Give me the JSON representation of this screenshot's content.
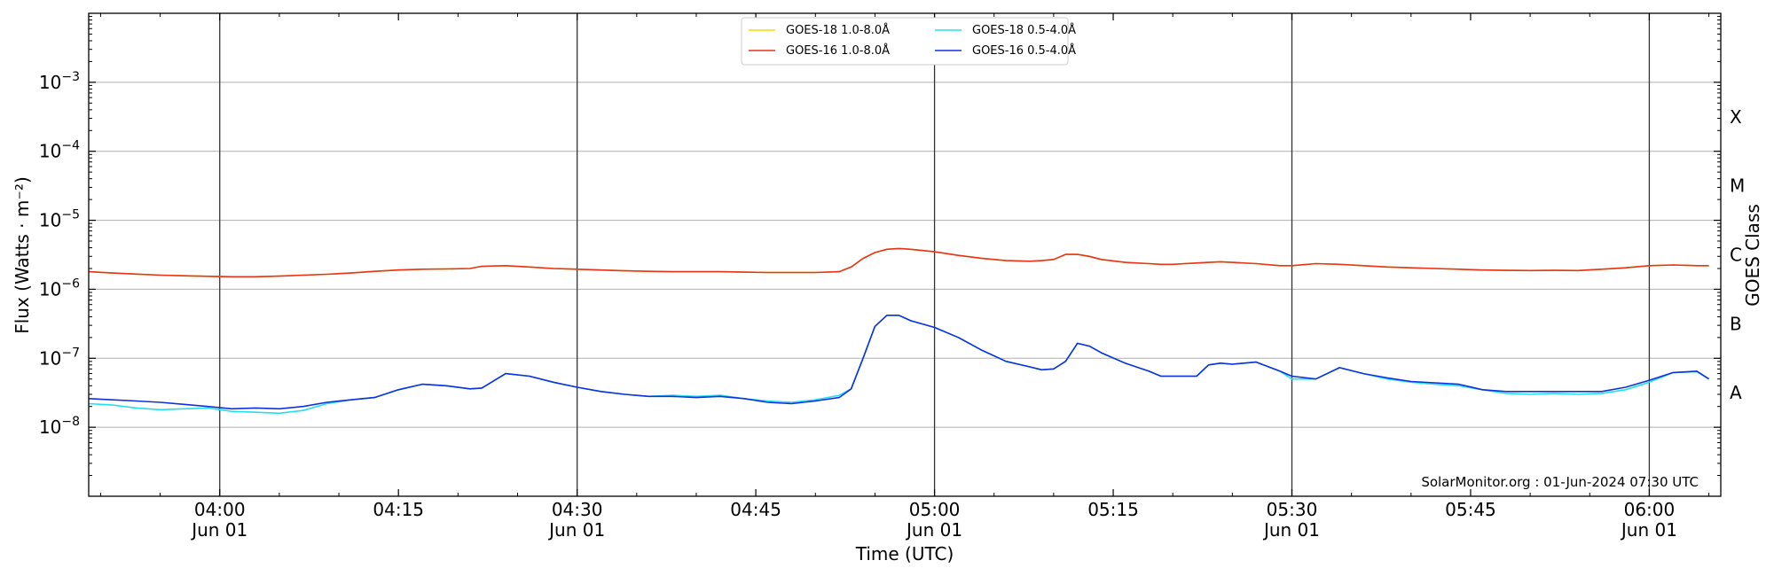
{
  "chart_data": {
    "type": "line",
    "title": "",
    "xlabel": "Time (UTC)",
    "ylabel": "Flux (Watts · m⁻²)",
    "y2label": "GOES Class",
    "yscale": "log",
    "ylim": [
      1e-09,
      0.01
    ],
    "xlim": [
      "03:49",
      "06:06"
    ],
    "grid": "horizontal",
    "legend_position": "top-center",
    "annotation": "SolarMonitor.org : 01-Jun-2024 07:30 UTC",
    "x_ticks": [
      {
        "time": "04:00",
        "date": "Jun 01"
      },
      {
        "time": "04:15",
        "date": ""
      },
      {
        "time": "04:30",
        "date": "Jun 01"
      },
      {
        "time": "04:45",
        "date": ""
      },
      {
        "time": "05:00",
        "date": "Jun 01"
      },
      {
        "time": "05:15",
        "date": ""
      },
      {
        "time": "05:30",
        "date": "Jun 01"
      },
      {
        "time": "05:45",
        "date": ""
      },
      {
        "time": "06:00",
        "date": "Jun 01"
      }
    ],
    "vlines": [
      "04:00",
      "04:30",
      "05:00",
      "05:30",
      "06:00"
    ],
    "y_ticks": [
      {
        "value": 1e-08,
        "base": "10",
        "exp": "−8"
      },
      {
        "value": 1e-07,
        "base": "10",
        "exp": "−7"
      },
      {
        "value": 1e-06,
        "base": "10",
        "exp": "−6"
      },
      {
        "value": 1e-05,
        "base": "10",
        "exp": "−5"
      },
      {
        "value": 0.0001,
        "base": "10",
        "exp": "−4"
      },
      {
        "value": 0.001,
        "base": "10",
        "exp": "−3"
      }
    ],
    "goes_classes": [
      {
        "label": "A",
        "value": 3.16e-08
      },
      {
        "label": "B",
        "value": 3.16e-07
      },
      {
        "label": "C",
        "value": 3.16e-06
      },
      {
        "label": "M",
        "value": 3.16e-05
      },
      {
        "label": "X",
        "value": 0.000316
      }
    ],
    "x": [
      "03:49",
      "03:51",
      "03:53",
      "03:55",
      "03:57",
      "03:59",
      "04:01",
      "04:03",
      "04:05",
      "04:07",
      "04:09",
      "04:11",
      "04:13",
      "04:15",
      "04:17",
      "04:19",
      "04:21",
      "04:22",
      "04:24",
      "04:26",
      "04:28",
      "04:30",
      "04:32",
      "04:34",
      "04:36",
      "04:38",
      "04:40",
      "04:42",
      "04:44",
      "04:46",
      "04:48",
      "04:50",
      "04:52",
      "04:53",
      "04:54",
      "04:55",
      "04:56",
      "04:57",
      "04:58",
      "05:00",
      "05:02",
      "05:04",
      "05:06",
      "05:08",
      "05:09",
      "05:10",
      "05:11",
      "05:12",
      "05:13",
      "05:14",
      "05:16",
      "05:18",
      "05:19",
      "05:20",
      "05:21",
      "05:22",
      "05:23",
      "05:24",
      "05:25",
      "05:27",
      "05:29",
      "05:30",
      "05:32",
      "05:34",
      "05:36",
      "05:38",
      "05:40",
      "05:42",
      "05:44",
      "05:46",
      "05:48",
      "05:50",
      "05:52",
      "05:54",
      "05:56",
      "05:58",
      "06:00",
      "06:02",
      "06:04",
      "06:05"
    ],
    "series": [
      {
        "name": "GOES-18 1.0-8.0Å",
        "color": "#ffd700",
        "values": [
          1.8e-06,
          1.72e-06,
          1.66e-06,
          1.6e-06,
          1.57e-06,
          1.54e-06,
          1.52e-06,
          1.52e-06,
          1.55e-06,
          1.6e-06,
          1.65e-06,
          1.72e-06,
          1.82e-06,
          1.9e-06,
          1.95e-06,
          1.97e-06,
          2e-06,
          2.15e-06,
          2.2e-06,
          2.1e-06,
          2e-06,
          1.95e-06,
          1.9e-06,
          1.85e-06,
          1.82e-06,
          1.8e-06,
          1.8e-06,
          1.8e-06,
          1.77e-06,
          1.75e-06,
          1.75e-06,
          1.75e-06,
          1.8e-06,
          2.1e-06,
          2.8e-06,
          3.4e-06,
          3.8e-06,
          3.9e-06,
          3.8e-06,
          3.5e-06,
          3.1e-06,
          2.8e-06,
          2.6e-06,
          2.55e-06,
          2.6e-06,
          2.7e-06,
          3.2e-06,
          3.2e-06,
          3e-06,
          2.7e-06,
          2.45e-06,
          2.35e-06,
          2.3e-06,
          2.3e-06,
          2.35e-06,
          2.4e-06,
          2.45e-06,
          2.5e-06,
          2.45e-06,
          2.35e-06,
          2.2e-06,
          2.2e-06,
          2.35e-06,
          2.3e-06,
          2.2e-06,
          2.1e-06,
          2.05e-06,
          2e-06,
          1.95e-06,
          1.9e-06,
          1.88e-06,
          1.87e-06,
          1.88e-06,
          1.87e-06,
          1.95e-06,
          2.05e-06,
          2.2e-06,
          2.25e-06,
          2.2e-06,
          2.2e-06
        ]
      },
      {
        "name": "GOES-16 1.0-8.0Å",
        "color": "#e8341c",
        "values": [
          1.8e-06,
          1.72e-06,
          1.66e-06,
          1.6e-06,
          1.57e-06,
          1.54e-06,
          1.52e-06,
          1.52e-06,
          1.55e-06,
          1.6e-06,
          1.65e-06,
          1.72e-06,
          1.82e-06,
          1.9e-06,
          1.95e-06,
          1.97e-06,
          2e-06,
          2.15e-06,
          2.2e-06,
          2.1e-06,
          2e-06,
          1.95e-06,
          1.9e-06,
          1.85e-06,
          1.82e-06,
          1.8e-06,
          1.8e-06,
          1.8e-06,
          1.77e-06,
          1.75e-06,
          1.75e-06,
          1.75e-06,
          1.8e-06,
          2.1e-06,
          2.8e-06,
          3.4e-06,
          3.8e-06,
          3.9e-06,
          3.8e-06,
          3.5e-06,
          3.1e-06,
          2.8e-06,
          2.6e-06,
          2.55e-06,
          2.6e-06,
          2.7e-06,
          3.2e-06,
          3.2e-06,
          3e-06,
          2.7e-06,
          2.45e-06,
          2.35e-06,
          2.3e-06,
          2.3e-06,
          2.35e-06,
          2.4e-06,
          2.45e-06,
          2.5e-06,
          2.45e-06,
          2.35e-06,
          2.2e-06,
          2.2e-06,
          2.35e-06,
          2.3e-06,
          2.2e-06,
          2.1e-06,
          2.05e-06,
          2e-06,
          1.95e-06,
          1.9e-06,
          1.88e-06,
          1.87e-06,
          1.88e-06,
          1.87e-06,
          1.95e-06,
          2.05e-06,
          2.2e-06,
          2.25e-06,
          2.2e-06,
          2.2e-06
        ]
      },
      {
        "name": "GOES-18 0.5-4.0Å",
        "color": "#22e0f0",
        "values": [
          2.2e-08,
          2.1e-08,
          1.9e-08,
          1.8e-08,
          1.85e-08,
          1.9e-08,
          1.7e-08,
          1.65e-08,
          1.6e-08,
          1.75e-08,
          2.2e-08,
          2.5e-08,
          2.7e-08,
          3.5e-08,
          4.2e-08,
          4e-08,
          3.6e-08,
          3.7e-08,
          6e-08,
          5.5e-08,
          4.5e-08,
          3.8e-08,
          3.3e-08,
          3e-08,
          2.8e-08,
          2.9e-08,
          2.8e-08,
          2.9e-08,
          2.6e-08,
          2.4e-08,
          2.3e-08,
          2.5e-08,
          2.9e-08,
          3.6e-08,
          1e-07,
          2.9e-07,
          4.2e-07,
          4.2e-07,
          3.5e-07,
          2.8e-07,
          2e-07,
          1.3e-07,
          9e-08,
          7.5e-08,
          6.8e-08,
          7e-08,
          9e-08,
          1.65e-07,
          1.5e-07,
          1.2e-07,
          8.5e-08,
          6.5e-08,
          5.5e-08,
          5.5e-08,
          5.5e-08,
          5.5e-08,
          8e-08,
          8.5e-08,
          8.2e-08,
          8.8e-08,
          6.5e-08,
          5e-08,
          5e-08,
          7.3e-08,
          6e-08,
          5e-08,
          4.5e-08,
          4.2e-08,
          4e-08,
          3.5e-08,
          3.1e-08,
          3e-08,
          3.1e-08,
          3e-08,
          3.1e-08,
          3.5e-08,
          4.5e-08,
          6.2e-08,
          6.4e-08,
          5e-08
        ]
      },
      {
        "name": "GOES-16 0.5-4.0Å",
        "color": "#1030e0",
        "values": [
          2.6e-08,
          2.5e-08,
          2.4e-08,
          2.3e-08,
          2.15e-08,
          2e-08,
          1.85e-08,
          1.9e-08,
          1.85e-08,
          2e-08,
          2.3e-08,
          2.5e-08,
          2.7e-08,
          3.5e-08,
          4.2e-08,
          4e-08,
          3.6e-08,
          3.7e-08,
          6e-08,
          5.5e-08,
          4.5e-08,
          3.8e-08,
          3.3e-08,
          3e-08,
          2.8e-08,
          2.8e-08,
          2.7e-08,
          2.8e-08,
          2.6e-08,
          2.3e-08,
          2.2e-08,
          2.4e-08,
          2.7e-08,
          3.6e-08,
          1e-07,
          2.9e-07,
          4.2e-07,
          4.2e-07,
          3.5e-07,
          2.8e-07,
          2e-07,
          1.3e-07,
          9e-08,
          7.5e-08,
          6.8e-08,
          7e-08,
          9e-08,
          1.65e-07,
          1.5e-07,
          1.2e-07,
          8.5e-08,
          6.5e-08,
          5.5e-08,
          5.5e-08,
          5.5e-08,
          5.5e-08,
          8e-08,
          8.5e-08,
          8.2e-08,
          8.8e-08,
          6.5e-08,
          5.5e-08,
          5e-08,
          7.3e-08,
          6e-08,
          5.2e-08,
          4.6e-08,
          4.4e-08,
          4.2e-08,
          3.5e-08,
          3.3e-08,
          3.3e-08,
          3.3e-08,
          3.3e-08,
          3.3e-08,
          3.8e-08,
          4.8e-08,
          6.2e-08,
          6.5e-08,
          5e-08
        ]
      }
    ]
  }
}
